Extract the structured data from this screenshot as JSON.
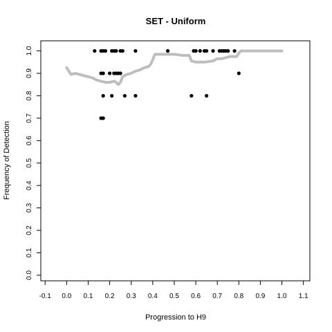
{
  "chart_data": {
    "type": "scatter",
    "title": "SET - Uniform",
    "xlabel": "Progression to H9",
    "ylabel": "Frequency of Detection",
    "xlim": [
      -0.12,
      1.13
    ],
    "ylim": [
      -0.025,
      1.045
    ],
    "xticks": [
      -0.1,
      0.0,
      0.1,
      0.2,
      0.3,
      0.4,
      0.5,
      0.6,
      0.7,
      0.8,
      0.9,
      1.0,
      1.1
    ],
    "xtick_labels": [
      "-0.1",
      "0.0",
      "0.1",
      "0.2",
      "0.3",
      "0.4",
      "0.5",
      "0.6",
      "0.7",
      "0.8",
      "0.9",
      "1.0",
      "1.1"
    ],
    "yticks": [
      0.0,
      0.1,
      0.2,
      0.3,
      0.4,
      0.5,
      0.6,
      0.7,
      0.8,
      0.9,
      1.0
    ],
    "ytick_labels": [
      "0.0",
      "0.1",
      "0.2",
      "0.3",
      "0.4",
      "0.5",
      "0.6",
      "0.7",
      "0.8",
      "0.9",
      "1.0"
    ],
    "grid": false,
    "legend": "none",
    "colors": {
      "points": "#000000",
      "trend": "#bebebe"
    },
    "points": [
      [
        0.13,
        1.0
      ],
      [
        0.16,
        1.0
      ],
      [
        0.17,
        1.0
      ],
      [
        0.18,
        1.0
      ],
      [
        0.21,
        1.0
      ],
      [
        0.22,
        1.0
      ],
      [
        0.23,
        1.0
      ],
      [
        0.25,
        1.0
      ],
      [
        0.26,
        1.0
      ],
      [
        0.32,
        1.0
      ],
      [
        0.47,
        1.0
      ],
      [
        0.59,
        1.0
      ],
      [
        0.6,
        1.0
      ],
      [
        0.62,
        1.0
      ],
      [
        0.64,
        1.0
      ],
      [
        0.65,
        1.0
      ],
      [
        0.68,
        1.0
      ],
      [
        0.71,
        1.0
      ],
      [
        0.72,
        1.0
      ],
      [
        0.73,
        1.0
      ],
      [
        0.74,
        1.0
      ],
      [
        0.75,
        1.0
      ],
      [
        0.78,
        1.0
      ],
      [
        0.16,
        0.9
      ],
      [
        0.17,
        0.9
      ],
      [
        0.2,
        0.9
      ],
      [
        0.22,
        0.9
      ],
      [
        0.23,
        0.9
      ],
      [
        0.24,
        0.9
      ],
      [
        0.25,
        0.9
      ],
      [
        0.8,
        0.9
      ],
      [
        0.17,
        0.8
      ],
      [
        0.21,
        0.8
      ],
      [
        0.27,
        0.8
      ],
      [
        0.32,
        0.8
      ],
      [
        0.58,
        0.8
      ],
      [
        0.65,
        0.8
      ],
      [
        0.16,
        0.7
      ],
      [
        0.17,
        0.7
      ]
    ],
    "trend_line": {
      "x": [
        0.0,
        0.01,
        0.02,
        0.04,
        0.06,
        0.08,
        0.1,
        0.12,
        0.14,
        0.16,
        0.18,
        0.2,
        0.22,
        0.23,
        0.24,
        0.25,
        0.26,
        0.28,
        0.3,
        0.32,
        0.34,
        0.36,
        0.38,
        0.39,
        0.4,
        0.41,
        0.42,
        0.45,
        0.46,
        0.5,
        0.54,
        0.57,
        0.58,
        0.6,
        0.64,
        0.68,
        0.7,
        0.72,
        0.76,
        0.79,
        0.8,
        0.81,
        0.82,
        0.9,
        1.0
      ],
      "y": [
        0.925,
        0.91,
        0.895,
        0.9,
        0.895,
        0.89,
        0.885,
        0.88,
        0.87,
        0.865,
        0.86,
        0.86,
        0.865,
        0.86,
        0.85,
        0.86,
        0.885,
        0.895,
        0.9,
        0.91,
        0.915,
        0.925,
        0.93,
        0.94,
        0.96,
        0.985,
        0.985,
        0.985,
        0.985,
        0.985,
        0.98,
        0.98,
        0.955,
        0.95,
        0.95,
        0.955,
        0.965,
        0.965,
        0.975,
        0.975,
        0.99,
        1.0,
        1.0,
        1.0,
        1.0
      ]
    }
  }
}
